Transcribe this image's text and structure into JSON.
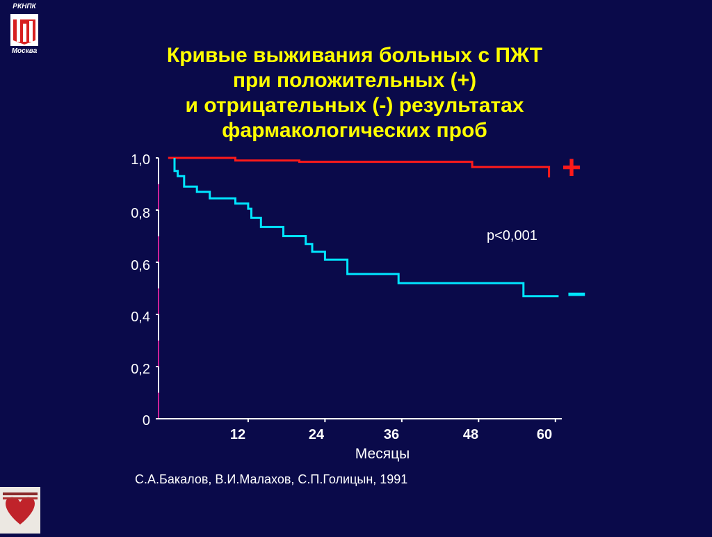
{
  "logo": {
    "top_line": "РКНПК",
    "bottom_line": "Москва"
  },
  "title": {
    "line1": "Кривые выживания больных с ПЖТ",
    "line2": "при положительных (+)",
    "line3": "и отрицательных (-) результатах",
    "line4": "фармакологических проб"
  },
  "chart_data": {
    "type": "line",
    "step": true,
    "xlabel": "Месяцы",
    "ylabel": "",
    "xlim": [
      -2,
      61
    ],
    "ylim": [
      0,
      1.0
    ],
    "x_ticks": [
      "12",
      "24",
      "36",
      "48",
      "60"
    ],
    "y_ticks": [
      "1,0",
      "0,8",
      "0,6",
      "0,4",
      "0,2",
      "0"
    ],
    "annotation": "p<0,001",
    "series": [
      {
        "name": "+",
        "color": "#ff1a1a",
        "points": [
          [
            -0.5,
            1.0
          ],
          [
            10,
            1.0
          ],
          [
            10,
            0.99
          ],
          [
            20,
            0.99
          ],
          [
            20,
            0.985
          ],
          [
            47,
            0.985
          ],
          [
            47,
            0.965
          ],
          [
            59,
            0.965
          ],
          [
            59,
            0.925
          ]
        ]
      },
      {
        "name": "-",
        "color": "#00e5ff",
        "points": [
          [
            0.5,
            1.0
          ],
          [
            0.5,
            0.95
          ],
          [
            1,
            0.95
          ],
          [
            1,
            0.93
          ],
          [
            2,
            0.93
          ],
          [
            2,
            0.89
          ],
          [
            4,
            0.89
          ],
          [
            4,
            0.87
          ],
          [
            6,
            0.87
          ],
          [
            6,
            0.845
          ],
          [
            10,
            0.845
          ],
          [
            10,
            0.825
          ],
          [
            12,
            0.825
          ],
          [
            12,
            0.805
          ],
          [
            12.5,
            0.805
          ],
          [
            12.5,
            0.77
          ],
          [
            14,
            0.77
          ],
          [
            14,
            0.735
          ],
          [
            17.5,
            0.735
          ],
          [
            17.5,
            0.7
          ],
          [
            21,
            0.7
          ],
          [
            21,
            0.67
          ],
          [
            22,
            0.67
          ],
          [
            22,
            0.64
          ],
          [
            24,
            0.64
          ],
          [
            24,
            0.61
          ],
          [
            27.5,
            0.61
          ],
          [
            27.5,
            0.555
          ],
          [
            35.5,
            0.555
          ],
          [
            35.5,
            0.52
          ],
          [
            55,
            0.52
          ],
          [
            55,
            0.47
          ],
          [
            60.5,
            0.47
          ]
        ]
      }
    ],
    "curve_labels": [
      "+",
      "–"
    ]
  },
  "citation": "С.А.Бакалов, В.И.Малахов, С.П.Голицын, 1991"
}
